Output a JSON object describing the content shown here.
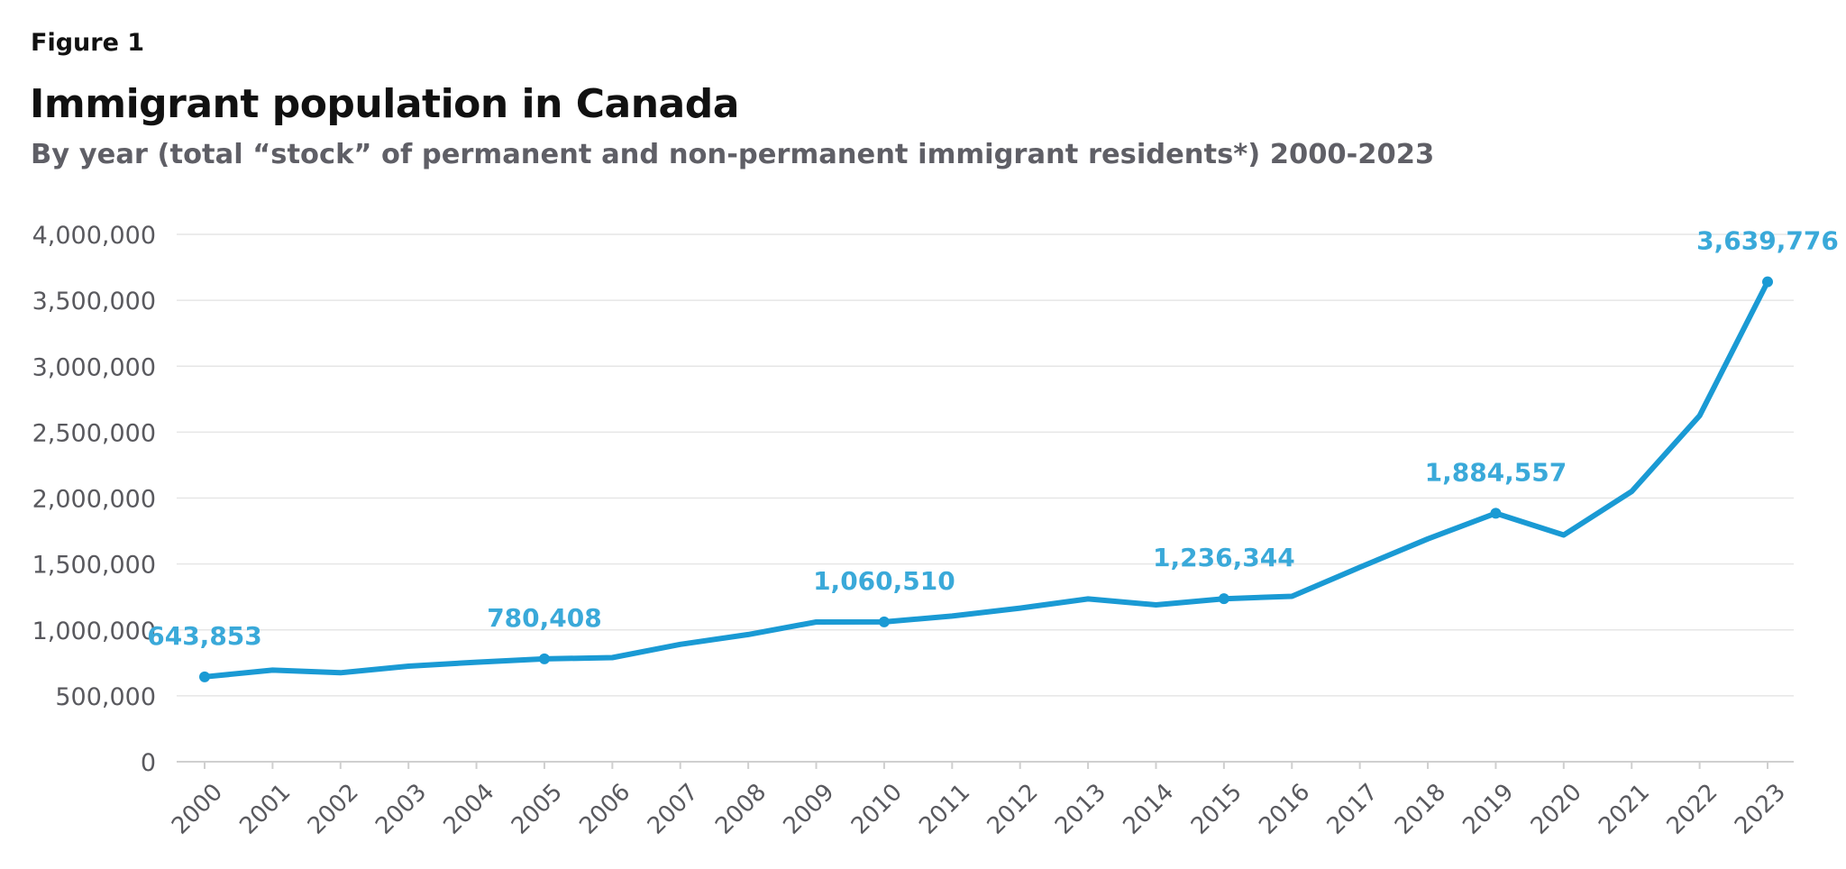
{
  "figure_label": "Figure 1",
  "title": "Immigrant population in Canada",
  "subtitle": "By year (total “stock” of permanent and non-permanent immigrant residents*) 2000-2023",
  "colors": {
    "line": "#1a9ad4",
    "label": "#3aa9d9",
    "axis_text": "#59595e",
    "grid": "#e6e6e6"
  },
  "chart_data": {
    "type": "line",
    "x": [
      "2000",
      "2001",
      "2002",
      "2003",
      "2004",
      "2005",
      "2006",
      "2007",
      "2008",
      "2009",
      "2010",
      "2011",
      "2012",
      "2013",
      "2014",
      "2015",
      "2016",
      "2017",
      "2018",
      "2019",
      "2020",
      "2021",
      "2022",
      "2023"
    ],
    "series": [
      {
        "values": [
          643853,
          695000,
          675000,
          725000,
          755000,
          780408,
          790000,
          890000,
          965000,
          1060000,
          1060510,
          1105000,
          1165000,
          1235000,
          1190000,
          1236344,
          1255000,
          1475000,
          1690000,
          1884557,
          1720000,
          2050000,
          2625000,
          3639776
        ]
      }
    ],
    "markers": [
      "2000",
      "2005",
      "2010",
      "2015",
      "2019",
      "2023"
    ],
    "annotations": [
      {
        "x": "2000",
        "text": "643,853"
      },
      {
        "x": "2005",
        "text": "780,408"
      },
      {
        "x": "2010",
        "text": "1,060,510"
      },
      {
        "x": "2015",
        "text": "1,236,344"
      },
      {
        "x": "2019",
        "text": "1,884,557"
      },
      {
        "x": "2023",
        "text": "3,639,776"
      }
    ],
    "yticks": [
      0,
      500000,
      1000000,
      1500000,
      2000000,
      2500000,
      3000000,
      3500000,
      4000000
    ],
    "ytick_labels": [
      "0",
      "500,000",
      "1,000,000",
      "1,500,000",
      "2,000,000",
      "2,500,000",
      "3,000,000",
      "3,500,000",
      "4,000,000"
    ],
    "ylim": [
      0,
      4000000
    ],
    "grid": true,
    "legend": false
  }
}
